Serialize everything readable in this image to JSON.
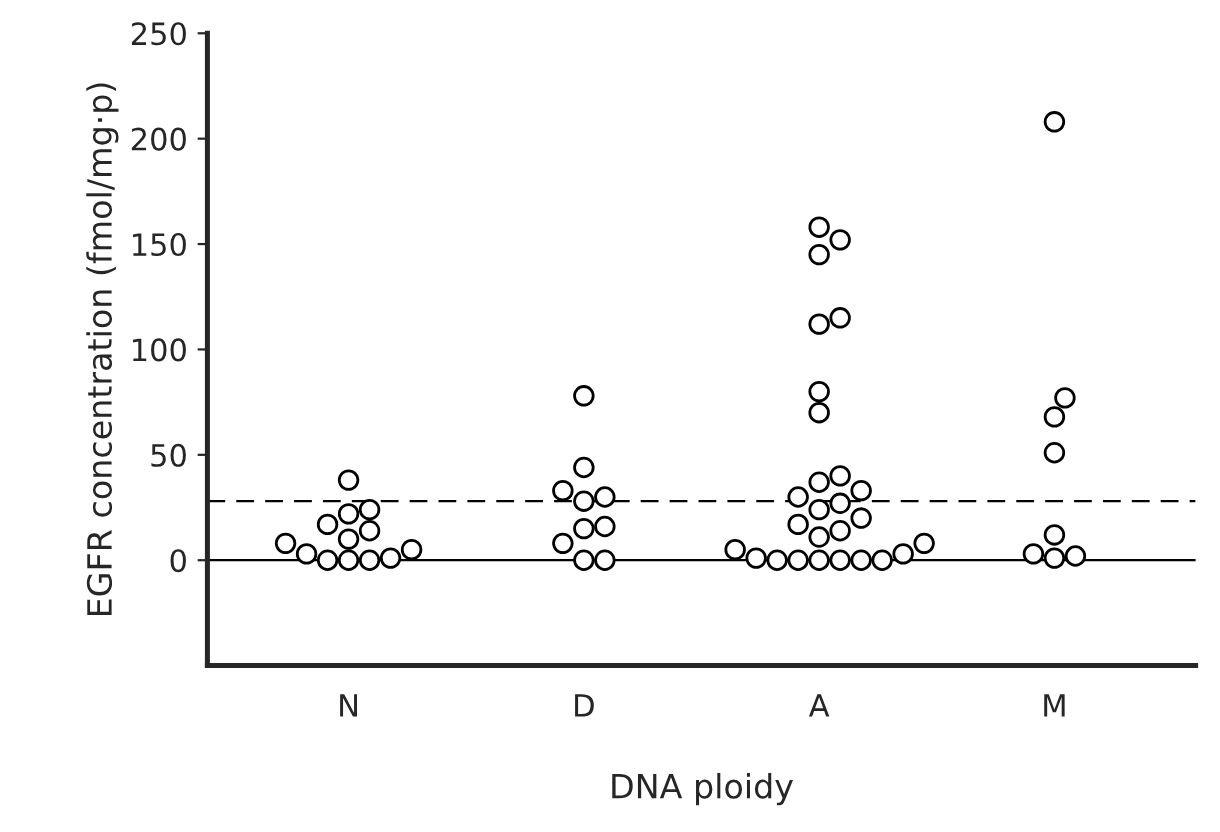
{
  "chart_data": {
    "type": "scatter",
    "xlabel": "DNA ploidy",
    "ylabel": "EGFR concentration (fmol/mg·p)",
    "categories": [
      "N",
      "D",
      "A",
      "M"
    ],
    "series": [
      {
        "color": "#000000",
        "x": [
          "N",
          "N",
          "N",
          "N",
          "N",
          "N",
          "N",
          "N",
          "N",
          "N",
          "N",
          "N",
          "N"
        ],
        "values": [
          38,
          24,
          22,
          17,
          14,
          10,
          8,
          5,
          3,
          1,
          0,
          0,
          0
        ]
      },
      {
        "color": "#000000",
        "x": [
          "D",
          "D",
          "D",
          "D",
          "D",
          "D",
          "D",
          "D",
          "D",
          "D"
        ],
        "values": [
          78,
          44,
          33,
          30,
          28,
          16,
          15,
          8,
          0,
          0
        ]
      },
      {
        "color": "#000000",
        "x": [
          "A",
          "A",
          "A",
          "A",
          "A",
          "A",
          "A",
          "A",
          "A",
          "A",
          "A",
          "A",
          "A",
          "A",
          "A",
          "A",
          "A",
          "A",
          "A",
          "A",
          "A",
          "A",
          "A",
          "A",
          "A",
          "A",
          "A"
        ],
        "values": [
          158,
          152,
          145,
          115,
          112,
          80,
          70,
          40,
          37,
          33,
          30,
          27,
          24,
          20,
          17,
          14,
          11,
          8,
          5,
          3,
          1,
          0,
          0,
          0,
          0,
          0,
          0
        ]
      },
      {
        "color": "#000000",
        "x": [
          "M",
          "M",
          "M",
          "M",
          "M",
          "M",
          "M",
          "M"
        ],
        "values": [
          208,
          77,
          68,
          51,
          12,
          3,
          2,
          1
        ]
      }
    ],
    "ylim": [
      -50,
      250
    ],
    "yticks": [
      0,
      50,
      100,
      150,
      200,
      250
    ],
    "ref_lines": [
      {
        "axis": "y",
        "value": 0,
        "line_style": "solid",
        "color": "#000000"
      },
      {
        "axis": "y",
        "value": 28,
        "line_style": "dashed",
        "color": "#000000"
      }
    ],
    "marker": "circle",
    "grid": false,
    "legend": false
  }
}
